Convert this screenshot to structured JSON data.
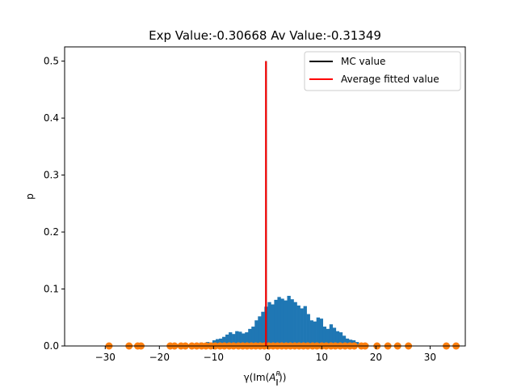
{
  "chart_data": {
    "type": "bar",
    "title": "Exp Value:-0.30668 Av Value:-0.31349",
    "xlabel_prefix": "γ(Im(",
    "xlabel_var": "A",
    "xlabel_sup": "R",
    "xlabel_sub": "∥",
    "xlabel_suffix": "))",
    "ylabel": "p",
    "xlim": [
      -37.5,
      36.5
    ],
    "ylim": [
      0,
      0.525
    ],
    "xticks": [
      -30,
      -20,
      -10,
      0,
      10,
      20,
      30
    ],
    "xtick_labels": [
      "−30",
      "−20",
      "−10",
      "0",
      "10",
      "20",
      "30"
    ],
    "yticks": [
      0.0,
      0.1,
      0.2,
      0.3,
      0.4,
      0.5
    ],
    "ytick_labels": [
      "0.0",
      "0.1",
      "0.2",
      "0.3",
      "0.4",
      "0.5"
    ],
    "histogram": {
      "color": "#1f77b4",
      "bin_width": 0.6,
      "x_start": -14.4,
      "values": [
        0.003,
        0.004,
        0.003,
        0.006,
        0.005,
        0.007,
        0.006,
        0.01,
        0.012,
        0.013,
        0.016,
        0.02,
        0.024,
        0.021,
        0.026,
        0.025,
        0.022,
        0.024,
        0.03,
        0.034,
        0.045,
        0.052,
        0.06,
        0.069,
        0.077,
        0.073,
        0.081,
        0.086,
        0.083,
        0.08,
        0.088,
        0.082,
        0.077,
        0.071,
        0.066,
        0.07,
        0.056,
        0.045,
        0.043,
        0.05,
        0.048,
        0.034,
        0.03,
        0.038,
        0.032,
        0.026,
        0.024,
        0.018,
        0.013,
        0.011,
        0.01,
        0.007,
        0.005,
        0.004,
        0.003
      ]
    },
    "scatter": {
      "color": "#ff7f0e",
      "y": 0,
      "x": [
        -29.3,
        -25.6,
        -24.0,
        -23.4,
        -18.0,
        -17.2,
        -16.0,
        -15.2,
        -14.0,
        -13.1,
        -12.2,
        -11.4,
        -10.5,
        -9.7,
        -8.8,
        -8.0,
        -7.1,
        -6.3,
        -5.4,
        -4.6,
        -3.8,
        -3.0,
        -2.2,
        -1.4,
        -0.6,
        0.2,
        1.0,
        1.8,
        2.6,
        3.4,
        4.2,
        5.0,
        5.8,
        6.6,
        7.4,
        8.3,
        9.1,
        10.0,
        10.8,
        11.7,
        12.5,
        13.4,
        14.3,
        15.2,
        16.0,
        17.3,
        18.0,
        20.2,
        22.2,
        24.0,
        26.0,
        33.0,
        34.8
      ]
    },
    "vlines": [
      {
        "name": "MC value",
        "x": -0.30668,
        "y_from": 0,
        "y_to": 0.5,
        "color": "#000000"
      },
      {
        "name": "Average fitted value",
        "x": -0.31349,
        "y_from": 0,
        "y_to": 0.5,
        "color": "#ff0000"
      }
    ],
    "legend": {
      "placement": "top-right",
      "entries": [
        {
          "label": "MC value",
          "color": "#000000"
        },
        {
          "label": "Average fitted value",
          "color": "#ff0000"
        }
      ]
    }
  }
}
